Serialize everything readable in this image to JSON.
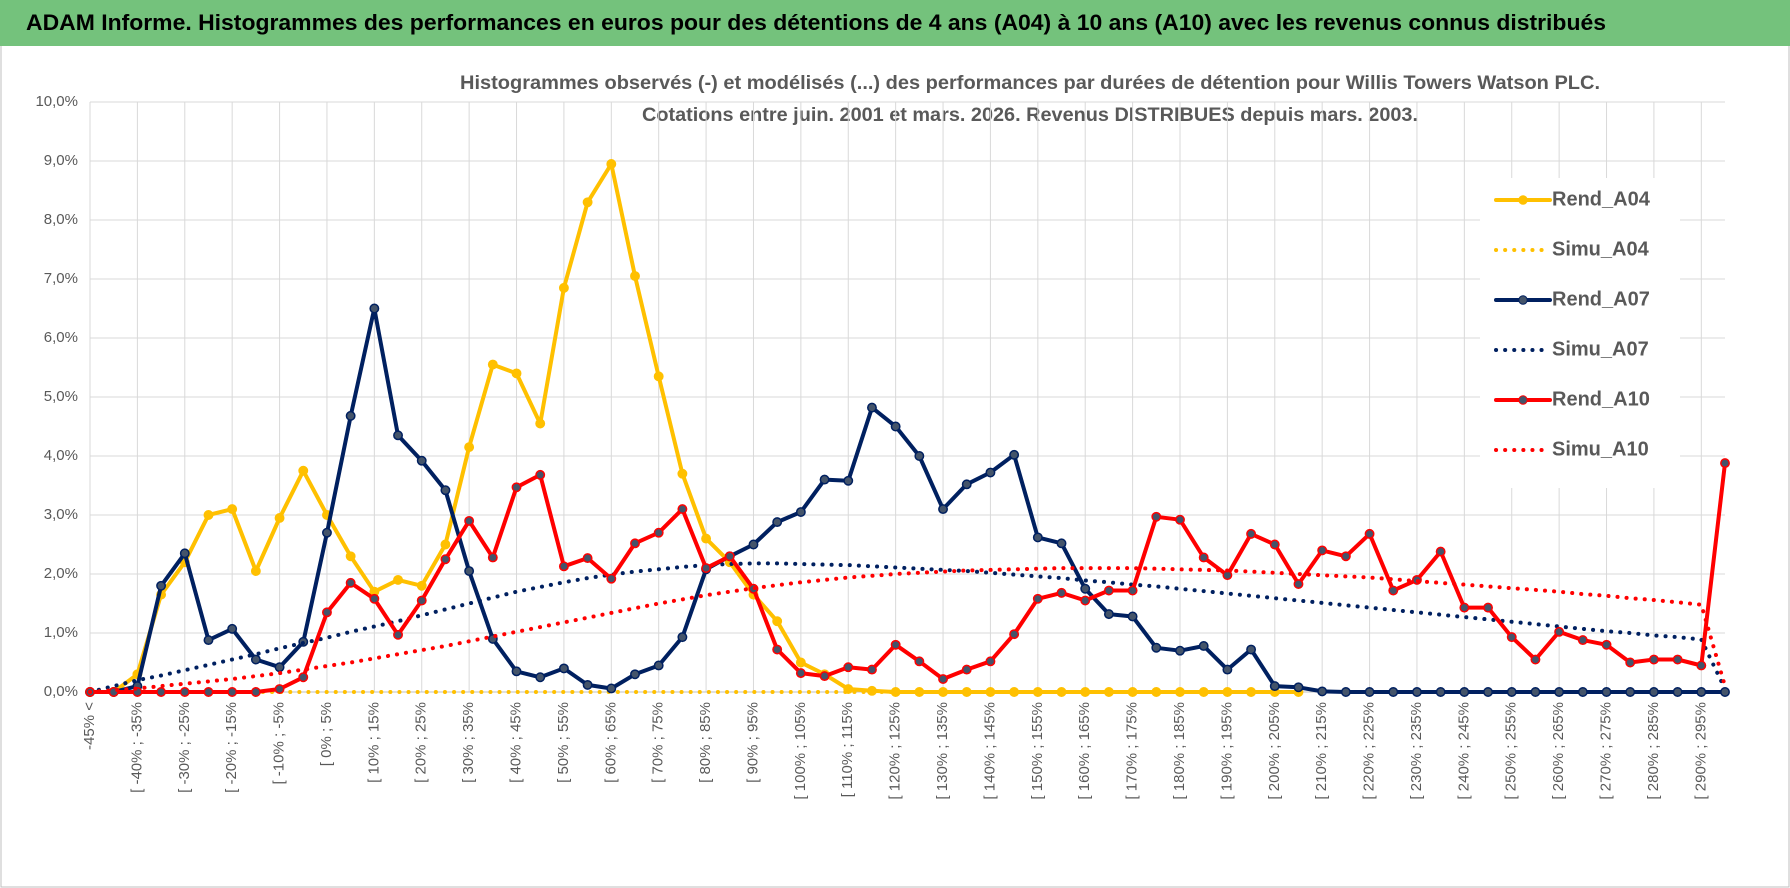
{
  "header": {
    "title": "ADAM Informe. Histogrammes des performances en euros pour des détentions de 4 ans (A04) à 10 ans (A10) avec les revenus connus distribués"
  },
  "chart_data": {
    "type": "line",
    "title": "Histogrammes observés (-) et modélisés (...) des performances par durées de détention pour Willis Towers Watson PLC.",
    "subtitle": "Cotations entre juin. 2001 et mars. 2026.  Revenus DISTRIBUES depuis mars. 2003.",
    "categories": [
      "-45% <",
      null,
      "[ -40% ; -35%",
      null,
      "[ -30% ; -25%",
      null,
      "[ -20% ; -15%",
      null,
      "[ -10% ; -5%",
      null,
      "[ 0% ; 5%",
      null,
      "[ 10% ; 15%",
      null,
      "[ 20% ; 25%",
      null,
      "[ 30% ; 35%",
      null,
      "[ 40% ; 45%",
      null,
      "[ 50% ; 55%",
      null,
      "[ 60% ; 65%",
      null,
      "[ 70% ; 75%",
      null,
      "[ 80% ; 85%",
      null,
      "[ 90% ; 95%",
      null,
      "[ 100% ; 105%",
      null,
      "[ 110% ; 115%",
      null,
      "[ 120% ; 125%",
      null,
      "[ 130% ; 135%",
      null,
      "[ 140% ; 145%",
      null,
      "[ 150% ; 155%",
      null,
      "[ 160% ; 165%",
      null,
      "[ 170% ; 175%",
      null,
      "[ 180% ; 185%",
      null,
      "[ 190% ; 195%",
      null,
      "[ 200% ; 205%",
      null,
      "[ 210% ; 215%",
      null,
      "[ 220% ; 225%",
      null,
      "[ 230% ; 235%",
      null,
      "[ 240% ; 245%",
      null,
      "[ 250% ; 255%",
      null,
      "[ 260% ; 265%",
      null,
      "[ 270% ; 275%",
      null,
      "[ 280% ; 285%",
      null,
      "[ 290% ; 295%",
      null
    ],
    "ylim": [
      0,
      10
    ],
    "yticks": [
      {
        "value": 0,
        "label": "0,0%"
      },
      {
        "value": 1,
        "label": "1,0%"
      },
      {
        "value": 2,
        "label": "2,0%"
      },
      {
        "value": 3,
        "label": "3,0%"
      },
      {
        "value": 4,
        "label": "4,0%"
      },
      {
        "value": 5,
        "label": "5,0%"
      },
      {
        "value": 6,
        "label": "6,0%"
      },
      {
        "value": 7,
        "label": "7,0%"
      },
      {
        "value": 8,
        "label": "8,0%"
      },
      {
        "value": 9,
        "label": "9,0%"
      },
      {
        "value": 10,
        "label": "10,0%"
      }
    ],
    "grid": true,
    "legend": "right",
    "series": [
      {
        "name": "Rend_A04",
        "color": "#ffc000",
        "style": "solid",
        "markers": true,
        "values": [
          0,
          0,
          0.3,
          1.65,
          2.2,
          3.0,
          3.1,
          2.05,
          2.95,
          3.75,
          3.0,
          2.3,
          1.7,
          1.9,
          1.8,
          2.5,
          4.15,
          5.55,
          5.4,
          4.55,
          6.85,
          8.3,
          8.95,
          7.05,
          5.35,
          3.7,
          2.6,
          2.2,
          1.65,
          1.2,
          0.5,
          0.3,
          0.05,
          0.02,
          0,
          0,
          0,
          0,
          0,
          0,
          0,
          0,
          0,
          0,
          0,
          0,
          0,
          0,
          0,
          0,
          0,
          0,
          null,
          null,
          null,
          null,
          null,
          null,
          null,
          null,
          null,
          null,
          null,
          null,
          null,
          null,
          null,
          null,
          null,
          null
        ]
      },
      {
        "name": "Simu_A04",
        "color": "#ffc000",
        "style": "dotted",
        "markers": false,
        "values": [
          0,
          0,
          0,
          0,
          0,
          0,
          0,
          0,
          0,
          0,
          0,
          0,
          0,
          0,
          0,
          0,
          0,
          0,
          0,
          0,
          0,
          0,
          0,
          0,
          0,
          0,
          0,
          0,
          0,
          0,
          0,
          0,
          0,
          0,
          0,
          0,
          0,
          0,
          0,
          0,
          0,
          0,
          0,
          0,
          0,
          0,
          0,
          0,
          0,
          0,
          0,
          0,
          null,
          null,
          null,
          null,
          null,
          null,
          null,
          null,
          null,
          null,
          null,
          null,
          null,
          null,
          null,
          null,
          null,
          null
        ]
      },
      {
        "name": "Rend_A07",
        "color": "#002060",
        "style": "solid",
        "markers": true,
        "values": [
          0,
          0,
          0.1,
          1.8,
          2.35,
          0.88,
          1.07,
          0.55,
          0.42,
          0.85,
          2.7,
          4.68,
          6.5,
          4.35,
          3.92,
          3.42,
          2.05,
          0.9,
          0.35,
          0.25,
          0.4,
          0.12,
          0.06,
          0.3,
          0.45,
          0.93,
          2.08,
          2.3,
          2.5,
          2.88,
          3.05,
          3.6,
          3.58,
          4.82,
          4.5,
          4.0,
          3.1,
          3.52,
          3.72,
          4.02,
          2.62,
          2.52,
          1.75,
          1.32,
          1.28,
          0.75,
          0.7,
          0.78,
          0.38,
          0.72,
          0.1,
          0.08,
          0.01,
          0,
          0,
          0,
          0,
          0,
          0,
          0,
          0,
          0,
          0,
          0,
          0,
          0,
          0,
          0,
          0,
          0
        ]
      },
      {
        "name": "Simu_A07",
        "color": "#002060",
        "style": "dotted",
        "markers": false,
        "values": [
          0,
          0.1,
          0.2,
          0.28,
          0.37,
          0.46,
          0.55,
          0.64,
          0.74,
          0.83,
          0.92,
          1.02,
          1.11,
          1.2,
          1.3,
          1.4,
          1.5,
          1.6,
          1.7,
          1.78,
          1.86,
          1.93,
          1.99,
          2.04,
          2.08,
          2.12,
          2.15,
          2.17,
          2.18,
          2.18,
          2.17,
          2.16,
          2.15,
          2.13,
          2.11,
          2.09,
          2.07,
          2.05,
          2.02,
          1.99,
          1.96,
          1.93,
          1.89,
          1.86,
          1.82,
          1.79,
          1.75,
          1.71,
          1.67,
          1.63,
          1.59,
          1.55,
          1.51,
          1.47,
          1.43,
          1.39,
          1.35,
          1.31,
          1.27,
          1.23,
          1.19,
          1.15,
          1.11,
          1.07,
          1.03,
          1.0,
          0.96,
          0.93,
          0.89,
          0.05
        ]
      },
      {
        "name": "Rend_A10",
        "color": "#ff0000",
        "style": "solid",
        "markers": true,
        "values": [
          0,
          0,
          0,
          0,
          0,
          0,
          0,
          0,
          0.05,
          0.25,
          1.35,
          1.85,
          1.58,
          0.97,
          1.55,
          2.25,
          2.9,
          2.28,
          3.47,
          3.68,
          2.13,
          2.27,
          1.92,
          2.52,
          2.7,
          3.1,
          2.1,
          2.3,
          1.75,
          0.72,
          0.32,
          0.27,
          0.42,
          0.38,
          0.8,
          0.52,
          0.22,
          0.38,
          0.52,
          0.98,
          1.58,
          1.68,
          1.55,
          1.72,
          1.72,
          2.97,
          2.92,
          2.28,
          1.98,
          2.68,
          2.5,
          1.83,
          2.4,
          2.3,
          2.68,
          1.72,
          1.9,
          2.38,
          1.43,
          1.43,
          0.93,
          0.55,
          1.02,
          0.88,
          0.8,
          0.5,
          0.55,
          0.55,
          0.45,
          3.88
        ]
      },
      {
        "name": "Simu_A10",
        "color": "#ff0000",
        "style": "dotted",
        "markers": false,
        "values": [
          0,
          0.03,
          0.06,
          0.1,
          0.14,
          0.18,
          0.22,
          0.27,
          0.32,
          0.38,
          0.44,
          0.5,
          0.57,
          0.64,
          0.71,
          0.78,
          0.86,
          0.94,
          1.02,
          1.1,
          1.18,
          1.26,
          1.34,
          1.42,
          1.5,
          1.57,
          1.64,
          1.7,
          1.76,
          1.81,
          1.86,
          1.9,
          1.94,
          1.97,
          2.0,
          2.02,
          2.04,
          2.06,
          2.07,
          2.08,
          2.09,
          2.1,
          2.1,
          2.1,
          2.1,
          2.09,
          2.08,
          2.07,
          2.06,
          2.04,
          2.02,
          2.0,
          1.98,
          1.96,
          1.94,
          1.91,
          1.88,
          1.85,
          1.82,
          1.79,
          1.76,
          1.73,
          1.7,
          1.66,
          1.63,
          1.59,
          1.56,
          1.52,
          1.48,
          0.1
        ]
      }
    ]
  }
}
